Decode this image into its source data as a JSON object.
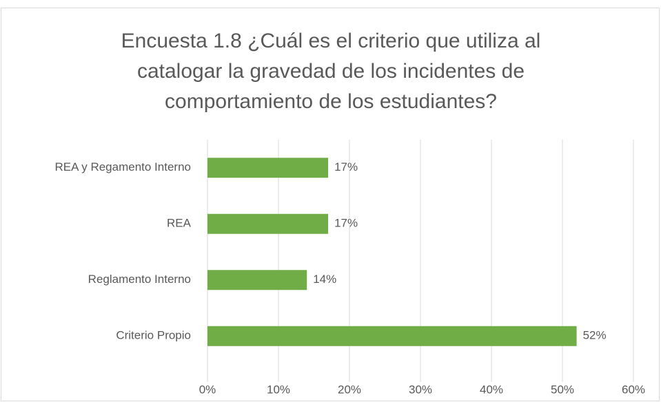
{
  "chart_data": {
    "type": "bar",
    "orientation": "horizontal",
    "title": "Encuesta 1.8 ¿Cuál es el criterio que utiliza al catalogar la gravedad de los incidentes de comportamiento de los estudiantes?",
    "categories": [
      "REA y Regamento Interno",
      "REA",
      "Reglamento Interno",
      "Criterio Propio"
    ],
    "values": [
      17,
      17,
      14,
      52
    ],
    "value_labels": [
      "17%",
      "17%",
      "14%",
      "52%"
    ],
    "color": "#70ad47",
    "xlim": [
      0,
      60
    ],
    "xticks": [
      {
        "value": 0,
        "label": "0%"
      },
      {
        "value": 10,
        "label": "10%"
      },
      {
        "value": 20,
        "label": "20%"
      },
      {
        "value": 30,
        "label": "30%"
      },
      {
        "value": 40,
        "label": "40%"
      },
      {
        "value": 50,
        "label": "50%"
      },
      {
        "value": 60,
        "label": "60%"
      }
    ],
    "grid": true
  }
}
